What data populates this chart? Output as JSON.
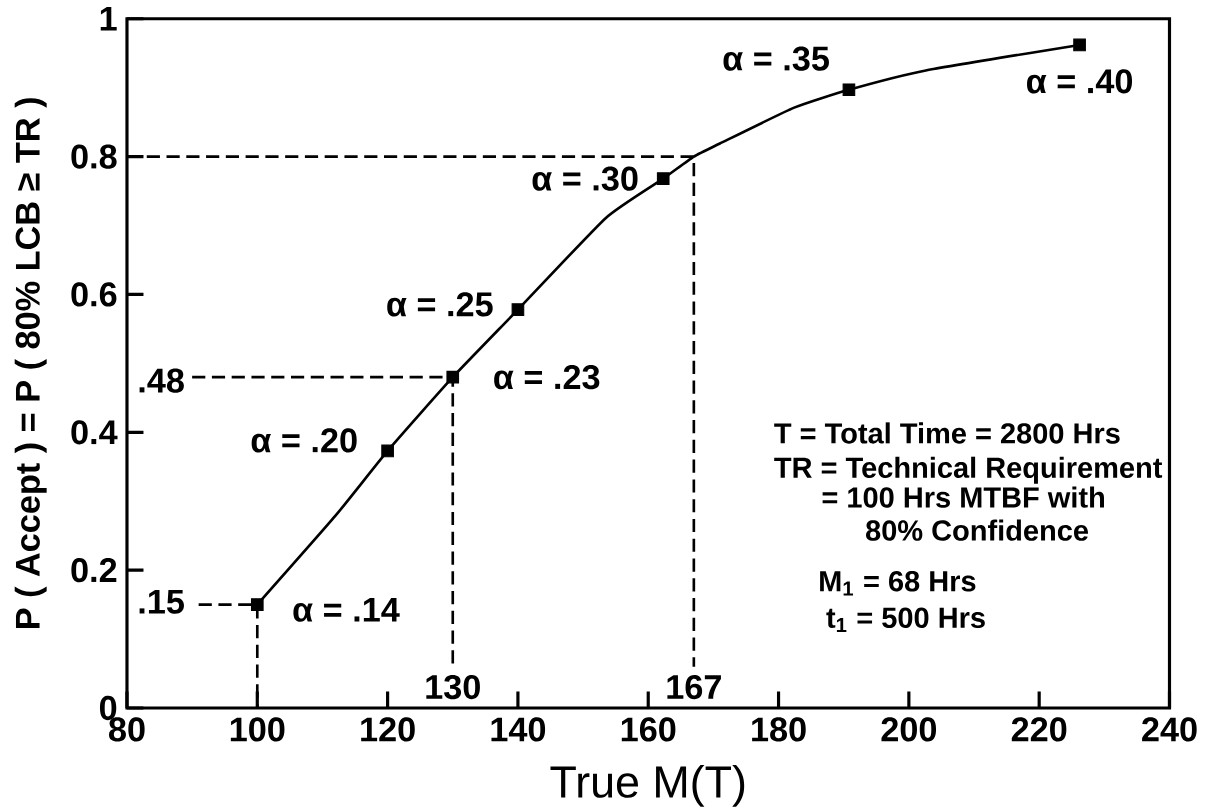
{
  "chart_data": {
    "type": "line",
    "xlabel": "True M(T)",
    "ylabel": "P ( Accept ) = P ( 80% LCB ≥ TR )",
    "xlim": [
      80,
      240
    ],
    "ylim": [
      0,
      1
    ],
    "xticks": [
      80,
      100,
      120,
      140,
      160,
      180,
      200,
      220,
      240
    ],
    "yticks": [
      0,
      0.2,
      0.4,
      0.6,
      0.8,
      1
    ],
    "series": [
      {
        "color": "#000000",
        "marker": "none",
        "line_style": "solid",
        "x": [
          100,
          112,
          120,
          130,
          140,
          153.5,
          162.3,
          167,
          171,
          182.4,
          190.8,
          202.6,
          226.2
        ],
        "values": [
          0.15,
          0.279,
          0.373,
          0.48,
          0.578,
          0.711,
          0.768,
          0.8,
          0.819,
          0.871,
          0.897,
          0.925,
          0.962
        ]
      },
      {
        "type": "scatter",
        "color": "#000000",
        "marker": "square",
        "x": [
          100,
          120,
          130,
          140,
          162.3,
          190.8,
          226.2
        ],
        "values": [
          0.15,
          0.373,
          0.48,
          0.578,
          0.768,
          0.897,
          0.962
        ]
      },
      {
        "type": "line",
        "color": "#000000",
        "marker": "none",
        "line_style": "dashed",
        "x": [
          91,
          100,
          100
        ],
        "values": [
          0.15,
          0.15,
          0
        ]
      },
      {
        "type": "line",
        "color": "#000000",
        "marker": "none",
        "line_style": "dashed",
        "x": [
          90,
          130,
          130
        ],
        "values": [
          0.48,
          0.48,
          0.06
        ]
      },
      {
        "type": "line",
        "color": "#000000",
        "marker": "none",
        "line_style": "dashed",
        "x": [
          80,
          167,
          167
        ],
        "values": [
          0.8,
          0.8,
          0.06
        ]
      }
    ],
    "annotations": [
      {
        "text": "α = .14",
        "x": 100,
        "y": 0.15
      },
      {
        "text": "α = .20",
        "x": 120,
        "y": 0.373
      },
      {
        "text": "α = .23",
        "x": 130,
        "y": 0.48
      },
      {
        "text": "α = .25",
        "x": 140,
        "y": 0.578
      },
      {
        "text": "α = .30",
        "x": 162.3,
        "y": 0.768
      },
      {
        "text": "α = .35",
        "x": 190.8,
        "y": 0.897
      },
      {
        "text": "α = .40",
        "x": 226.2,
        "y": 0.962
      },
      ".15",
      ".48",
      "130",
      "167",
      "T  = Total Time = 2800 Hrs",
      "TR = Technical Requirement",
      "= 100 Hrs MTBF with",
      "80% Confidence",
      "M$_{1}$ =  68 Hrs",
      "t$_{1}$ =  500 Hrs"
    ]
  }
}
